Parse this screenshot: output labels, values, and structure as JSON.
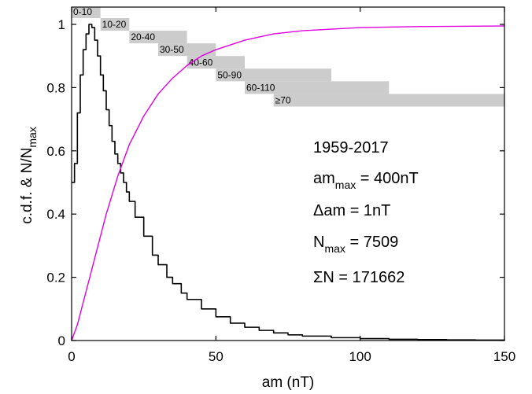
{
  "chart_data": {
    "type": "line",
    "xlabel": "am (nT)",
    "ylabel": {
      "main": "c.d.f.   &   N/N",
      "sub": "max"
    },
    "xlim": [
      0,
      150
    ],
    "ylim": [
      0,
      1.05
    ],
    "xticks": [
      0,
      50,
      100,
      150
    ],
    "yticks": [
      0,
      0.2,
      0.4,
      0.6,
      0.8,
      1
    ],
    "xtick_labels": [
      "0",
      "50",
      "100",
      "150"
    ],
    "ytick_labels": [
      "0",
      "0.2",
      "0.4",
      "0.6",
      "0.8",
      "1"
    ],
    "grid": false,
    "legend": "none",
    "series": [
      {
        "kind": "histogram-step",
        "color": "#000000",
        "x": [
          0,
          1,
          2,
          3,
          4,
          5,
          6,
          7,
          8,
          9,
          10,
          11,
          12,
          13,
          14,
          15,
          16,
          17,
          18,
          19,
          20,
          22,
          25,
          28,
          30,
          33,
          35,
          38,
          40,
          45,
          50,
          55,
          60,
          65,
          70,
          75,
          80,
          90,
          100,
          110,
          120,
          130,
          140,
          150
        ],
        "y": [
          0.5,
          0.56,
          0.72,
          0.84,
          0.92,
          0.97,
          1.0,
          0.99,
          0.95,
          0.9,
          0.84,
          0.79,
          0.73,
          0.68,
          0.63,
          0.59,
          0.56,
          0.53,
          0.5,
          0.47,
          0.44,
          0.39,
          0.33,
          0.27,
          0.24,
          0.2,
          0.18,
          0.15,
          0.13,
          0.1,
          0.075,
          0.055,
          0.042,
          0.032,
          0.024,
          0.018,
          0.014,
          0.009,
          0.006,
          0.004,
          0.003,
          0.002,
          0.0015,
          0.001
        ]
      },
      {
        "kind": "cdf",
        "color": "#e000e0",
        "x": [
          0,
          2,
          4,
          6,
          8,
          10,
          12,
          14,
          16,
          18,
          20,
          25,
          30,
          35,
          40,
          45,
          50,
          60,
          70,
          80,
          90,
          100,
          120,
          150
        ],
        "y": [
          0,
          0.05,
          0.12,
          0.19,
          0.26,
          0.33,
          0.4,
          0.46,
          0.52,
          0.57,
          0.62,
          0.71,
          0.78,
          0.83,
          0.87,
          0.9,
          0.92,
          0.95,
          0.97,
          0.98,
          0.985,
          0.99,
          0.993,
          0.995
        ]
      }
    ],
    "bands": [
      {
        "label": "0-10",
        "x0": 0,
        "x1": 10,
        "y0": 1.02,
        "y1": 1.06
      },
      {
        "label": "10-20",
        "x0": 10,
        "x1": 20,
        "y0": 0.98,
        "y1": 1.02
      },
      {
        "label": "20-40",
        "x0": 20,
        "x1": 40,
        "y0": 0.94,
        "y1": 0.98
      },
      {
        "label": "30-50",
        "x0": 30,
        "x1": 50,
        "y0": 0.9,
        "y1": 0.94
      },
      {
        "label": "40-60",
        "x0": 40,
        "x1": 60,
        "y0": 0.86,
        "y1": 0.9
      },
      {
        "label": "50-90",
        "x0": 50,
        "x1": 90,
        "y0": 0.82,
        "y1": 0.86
      },
      {
        "label": "60-110",
        "x0": 60,
        "x1": 110,
        "y0": 0.78,
        "y1": 0.82
      },
      {
        "label": "≥70",
        "x0": 70,
        "x1": 150,
        "y0": 0.74,
        "y1": 0.78
      }
    ],
    "band_color": "#cccccc",
    "annotations": {
      "period": "1959-2017",
      "am_max": {
        "pre": "am",
        "sub": "max",
        "post": " = 400nT"
      },
      "delta_am": "Δam = 1nT",
      "n_max": {
        "pre": "N",
        "sub": "max",
        "post": " = 7509"
      },
      "sum_n": "ΣN = 171662"
    }
  }
}
